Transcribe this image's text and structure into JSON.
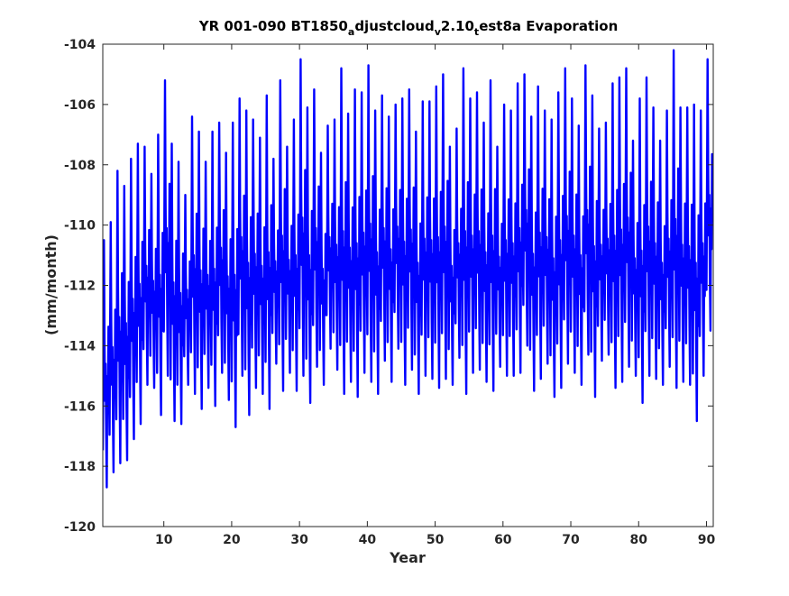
{
  "chart_data": {
    "type": "line",
    "title_parts": [
      "YR 001-090 BT1850",
      "a",
      "djustcloud",
      "v",
      "2.10",
      "t",
      "est8a Evaporation"
    ],
    "xlabel": "Year",
    "ylabel": "(mm/month)",
    "xlim": [
      1,
      91
    ],
    "ylim": [
      -120,
      -104
    ],
    "xticks": [
      10,
      20,
      30,
      40,
      50,
      60,
      70,
      80,
      90
    ],
    "yticks": [
      -120,
      -118,
      -116,
      -114,
      -112,
      -110,
      -108,
      -106,
      -104
    ],
    "grid": false,
    "legend": "none",
    "line_color": "#0000ff",
    "series": [
      {
        "points_per_year": 12,
        "yearly_max": [
          -110.5,
          -109.9,
          -108.2,
          -108.7,
          -107.8,
          -107.3,
          -107.4,
          -108.3,
          -107.0,
          -105.2,
          -107.3,
          -107.9,
          -109.0,
          -106.4,
          -106.9,
          -107.9,
          -106.9,
          -106.6,
          -107.6,
          -106.6,
          -105.8,
          -106.2,
          -106.5,
          -107.1,
          -105.7,
          -107.8,
          -105.2,
          -107.4,
          -106.5,
          -104.5,
          -106.1,
          -105.5,
          -107.6,
          -106.7,
          -106.5,
          -104.8,
          -106.3,
          -105.5,
          -105.6,
          -104.7,
          -106.2,
          -105.7,
          -106.4,
          -106.0,
          -105.8,
          -105.5,
          -106.9,
          -105.9,
          -105.9,
          -105.4,
          -105.0,
          -107.4,
          -106.8,
          -104.8,
          -105.8,
          -105.6,
          -106.6,
          -105.2,
          -107.4,
          -106.0,
          -106.2,
          -105.3,
          -105.0,
          -106.4,
          -105.4,
          -106.2,
          -106.5,
          -105.6,
          -104.8,
          -105.8,
          -106.7,
          -104.7,
          -105.7,
          -106.8,
          -106.6,
          -105.3,
          -105.1,
          -104.8,
          -107.2,
          -105.8,
          -105.1,
          -106.1,
          -107.2,
          -106.2,
          -104.2,
          -106.1,
          -106.1,
          -106.0,
          -106.2,
          -104.5
        ],
        "yearly_min": [
          -118.7,
          -118.2,
          -117.9,
          -117.8,
          -117.1,
          -116.6,
          -115.3,
          -115.4,
          -116.3,
          -115.0,
          -116.5,
          -116.6,
          -115.3,
          -115.6,
          -116.1,
          -115.4,
          -116.0,
          -114.9,
          -115.8,
          -116.7,
          -115.0,
          -116.3,
          -115.4,
          -115.6,
          -116.1,
          -114.6,
          -115.5,
          -114.9,
          -115.5,
          -115.0,
          -115.9,
          -114.7,
          -115.3,
          -114.1,
          -114.8,
          -115.6,
          -115.2,
          -115.7,
          -114.9,
          -115.2,
          -115.6,
          -114.5,
          -115.2,
          -114.1,
          -115.3,
          -114.8,
          -115.6,
          -115.0,
          -115.1,
          -115.4,
          -115.1,
          -115.3,
          -114.4,
          -115.6,
          -114.9,
          -114.8,
          -115.2,
          -115.5,
          -114.7,
          -115.0,
          -115.0,
          -114.9,
          -114.0,
          -115.5,
          -115.1,
          -114.6,
          -115.7,
          -115.4,
          -114.6,
          -114.9,
          -115.3,
          -114.3,
          -115.7,
          -114.5,
          -114.3,
          -115.4,
          -115.2,
          -114.7,
          -115.0,
          -115.9,
          -115.0,
          -115.1,
          -115.3,
          -114.7,
          -115.4,
          -115.2,
          -115.3,
          -116.5,
          -115.0,
          -113.5
        ]
      }
    ]
  }
}
